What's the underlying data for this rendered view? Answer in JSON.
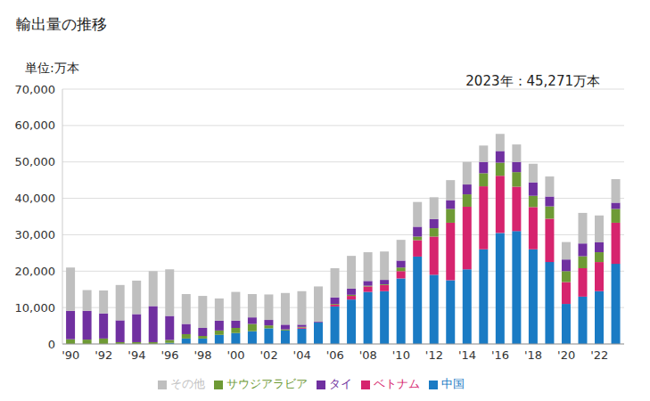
{
  "chart_data": {
    "type": "bar",
    "stacked": true,
    "title": "輸出量の推移",
    "ylabel": "単位:万本",
    "annotation": "2023年：45,271万本",
    "categories": [
      "'90",
      null,
      "'92",
      null,
      "'94",
      null,
      "'96",
      null,
      "'98",
      null,
      "'00",
      null,
      "'02",
      null,
      "'04",
      null,
      "'06",
      null,
      "'08",
      null,
      "'10",
      null,
      "'12",
      null,
      "'14",
      null,
      "'16",
      null,
      "'18",
      null,
      "'20",
      null,
      "'22",
      null
    ],
    "ylim": [
      0,
      70000
    ],
    "yticks": [
      0,
      {
        "value": 10000,
        "label": "10,000"
      },
      {
        "value": 20000,
        "label": "20,000"
      },
      {
        "value": 30000,
        "label": "30,000"
      },
      {
        "value": 40000,
        "label": "40,000"
      },
      {
        "value": 50000,
        "label": "50,000"
      },
      {
        "value": 60000,
        "label": "60,000"
      },
      {
        "value": 70000,
        "label": "70,000"
      }
    ],
    "grid": true,
    "legend": "bottom",
    "series": [
      {
        "name": "中国",
        "color": "#1a7bc4",
        "values": [
          0,
          0,
          0,
          0,
          0,
          0,
          300,
          1500,
          1500,
          2500,
          3000,
          3500,
          4300,
          3700,
          4200,
          5900,
          10300,
          12200,
          14300,
          14500,
          18000,
          24000,
          19000,
          17500,
          20500,
          26000,
          30500,
          31000,
          26000,
          22500,
          11000,
          13000,
          14500,
          22000
        ]
      },
      {
        "name": "ベトナム",
        "color": "#d6246e",
        "values": [
          0,
          0,
          0,
          0,
          0,
          0,
          0,
          0,
          0,
          0,
          0,
          0,
          0,
          0,
          300,
          0,
          500,
          1000,
          1500,
          1700,
          2000,
          4500,
          10500,
          15800,
          17200,
          17300,
          15700,
          12200,
          11600,
          11900,
          6000,
          7800,
          8000,
          11300
        ]
      },
      {
        "name": "サウジアラビア",
        "color": "#6e9a35",
        "values": [
          1300,
          1200,
          1500,
          500,
          500,
          500,
          800,
          1200,
          700,
          1200,
          1400,
          2000,
          800,
          300,
          200,
          0,
          200,
          300,
          200,
          200,
          1000,
          1000,
          2300,
          3800,
          3400,
          3600,
          3600,
          4000,
          3100,
          3400,
          3000,
          3300,
          2700,
          3800
        ]
      },
      {
        "name": "タイ",
        "color": "#7030a0",
        "values": [
          7800,
          7900,
          6900,
          6000,
          7700,
          9900,
          6600,
          2800,
          2200,
          2700,
          2000,
          1800,
          1500,
          1300,
          600,
          200,
          1800,
          1700,
          1300,
          1200,
          1900,
          2700,
          2500,
          2400,
          2700,
          3100,
          3200,
          2800,
          3700,
          2700,
          3200,
          3500,
          2700,
          1700
        ]
      },
      {
        "name": "その他",
        "color": "#bfbfbf",
        "values": [
          11900,
          5700,
          6300,
          9700,
          9200,
          9600,
          12800,
          8200,
          8800,
          6100,
          7900,
          6400,
          7000,
          8700,
          9200,
          9700,
          8000,
          9000,
          7900,
          7800,
          5700,
          6800,
          6000,
          5500,
          6200,
          4500,
          4700,
          4800,
          5100,
          5500,
          4800,
          8400,
          7400,
          6471
        ]
      }
    ]
  }
}
